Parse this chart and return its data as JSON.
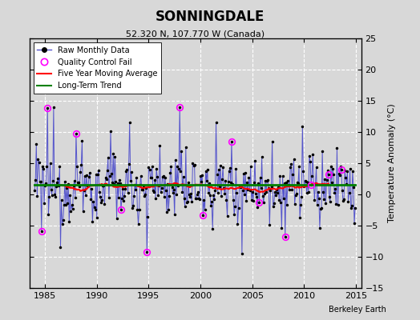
{
  "title": "SONNINGDALE",
  "subtitle": "52.320 N, 107.770 W (Canada)",
  "ylabel": "Temperature Anomaly (°C)",
  "watermark": "Berkeley Earth",
  "xlim": [
    1983.5,
    2015.5
  ],
  "ylim": [
    -15,
    25
  ],
  "yticks": [
    -15,
    -10,
    -5,
    0,
    5,
    10,
    15,
    20,
    25
  ],
  "xticks": [
    1985,
    1990,
    1995,
    2000,
    2005,
    2010,
    2015
  ],
  "background_color": "#d8d8d8",
  "plot_bg_color": "#d8d8d8",
  "grid_color": "white",
  "line_color": "#5555cc",
  "ma_color": "red",
  "trend_color": "green",
  "qc_color": "magenta",
  "seed": 12345
}
